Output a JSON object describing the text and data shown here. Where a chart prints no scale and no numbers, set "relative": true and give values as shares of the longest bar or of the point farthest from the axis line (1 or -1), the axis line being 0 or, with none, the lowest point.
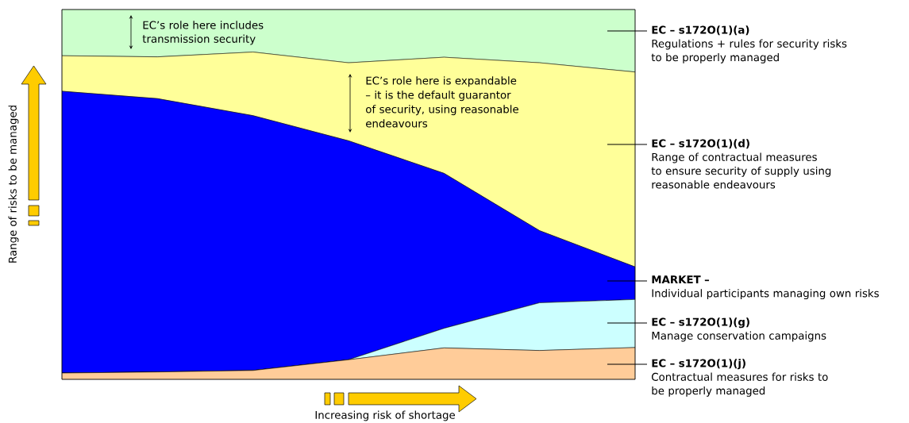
{
  "chart_data": {
    "type": "area",
    "stacked": true,
    "relative": true,
    "legend": "right",
    "categories": [
      null,
      null,
      null,
      null,
      null,
      null,
      null
    ],
    "xlabel": "Increasing risk of shortage",
    "ylabel": "Range of risks to be managed",
    "series": [
      {
        "name": "EC – s172O(1)(j)",
        "color": "#ffcc99",
        "values": [
          0.017,
          0.02,
          0.024,
          0.053,
          0.085,
          0.078,
          0.086
        ]
      },
      {
        "name": "EC – s172O(1)(g)",
        "color": "#ccffff",
        "values": [
          0,
          0,
          0,
          0,
          0.053,
          0.129,
          0.13
        ]
      },
      {
        "name": "MARKET –",
        "color": "#0000ff",
        "values": [
          0.762,
          0.739,
          0.689,
          0.592,
          0.419,
          0.195,
          0.088
        ]
      },
      {
        "name": "EC – s172O(1)(d)",
        "color": "#ffff99",
        "values": [
          0.096,
          0.113,
          0.172,
          0.211,
          0.314,
          0.454,
          0.527
        ]
      },
      {
        "name": "EC – s172O(1)(a)",
        "color": "#ccffcc",
        "values": [
          0.125,
          0.128,
          0.115,
          0.144,
          0.129,
          0.144,
          0.169
        ]
      }
    ],
    "annotations": [
      "EC’s role here includes transmission security",
      "EC’s role here is expandable – it is the default guarantor of security, using reasonable endeavours",
      "Contractual measures for risks to be properly managed",
      "Manage conservation campaigns",
      "Individual participants managing own risks",
      "Range of contractual measures to ensure security of supply using reasonable endeavours",
      "Regulations + rules for security risks to be properly managed"
    ]
  }
}
